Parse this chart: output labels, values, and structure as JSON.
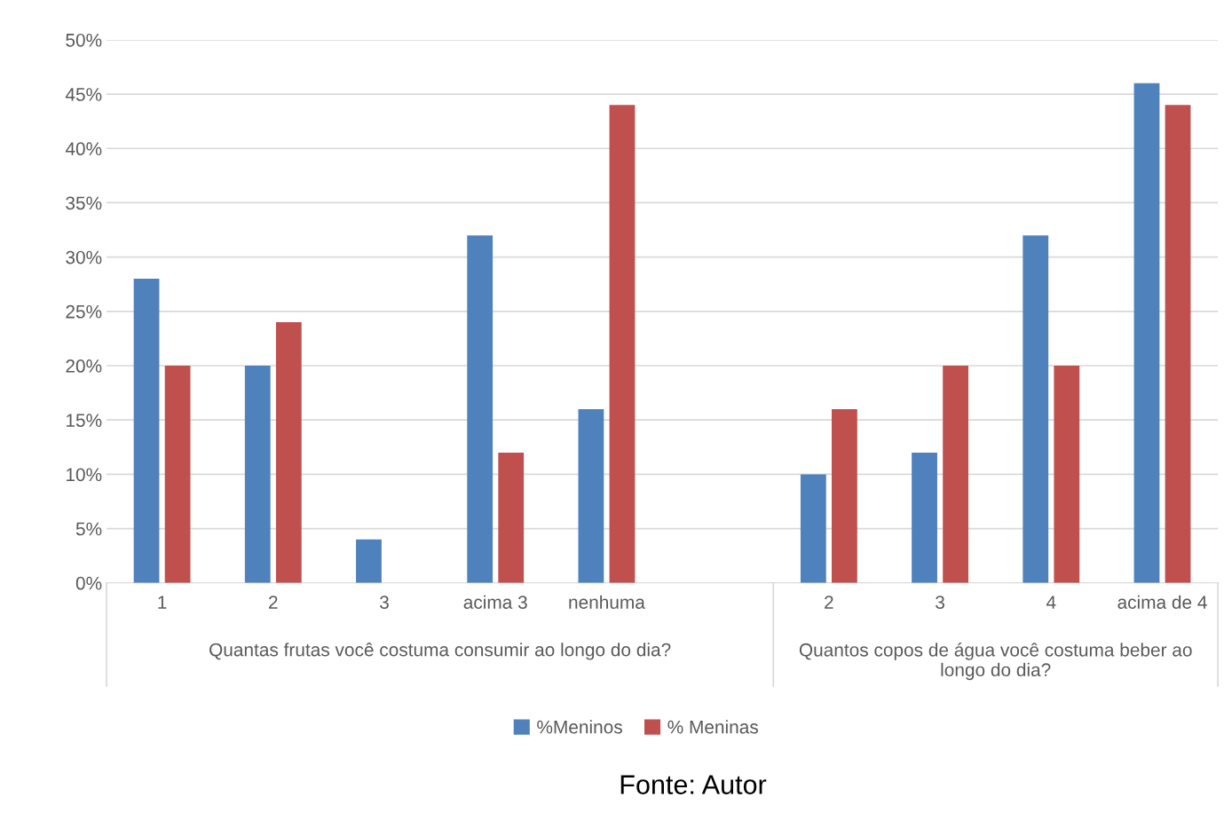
{
  "chart_data": {
    "type": "bar",
    "categories": [
      "1",
      "2",
      "3",
      "acima 3",
      "nenhuma",
      null,
      "2",
      "3",
      "4",
      "acima de 4"
    ],
    "series": [
      {
        "name": "%Meninos",
        "color": "#4f81bd",
        "values": [
          28,
          20,
          4,
          32,
          16,
          null,
          10,
          12,
          32,
          46
        ]
      },
      {
        "name": "% Meninas",
        "color": "#c0504d",
        "values": [
          20,
          24,
          0,
          12,
          44,
          null,
          16,
          20,
          20,
          44
        ]
      }
    ],
    "ylim": [
      0,
      50
    ],
    "yticks": [
      {
        "value": 0,
        "label": "0%"
      },
      {
        "value": 5,
        "label": "5%"
      },
      {
        "value": 10,
        "label": "10%"
      },
      {
        "value": 15,
        "label": "15%"
      },
      {
        "value": 20,
        "label": "20%"
      },
      {
        "value": 25,
        "label": "25%"
      },
      {
        "value": 30,
        "label": "30%"
      },
      {
        "value": 35,
        "label": "35%"
      },
      {
        "value": 40,
        "label": "40%"
      },
      {
        "value": 45,
        "label": "45%"
      },
      {
        "value": 50,
        "label": "50%"
      }
    ],
    "grid": "y",
    "legend": "bottom",
    "annotations": [
      "Quantas frutas você costuma consumir ao longo do dia?",
      "Quantos copos de água você costuma beber ao longo do dia?",
      "Fonte: Autor"
    ]
  }
}
